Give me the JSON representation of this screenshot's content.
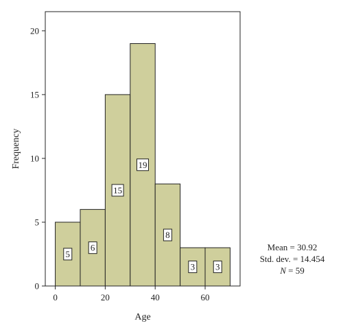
{
  "chart_data": {
    "type": "bar",
    "subtype": "histogram",
    "bins": [
      [
        0,
        10
      ],
      [
        10,
        20
      ],
      [
        20,
        30
      ],
      [
        30,
        40
      ],
      [
        40,
        50
      ],
      [
        50,
        60
      ],
      [
        60,
        70
      ]
    ],
    "values": [
      5,
      6,
      15,
      19,
      8,
      3,
      3
    ],
    "data_labels": [
      "5",
      "6",
      "15",
      "19",
      "8",
      "3",
      "3"
    ],
    "xlabel": "Age",
    "ylabel": "Frequency",
    "xlim": [
      -4,
      74
    ],
    "ylim": [
      0,
      21.5
    ],
    "xticks": [
      0,
      20,
      40,
      60
    ],
    "yticks": [
      0,
      5,
      10,
      15,
      20
    ],
    "xtick_labels": [
      "0",
      "20",
      "40",
      "60"
    ],
    "ytick_labels": [
      "0",
      "5",
      "10",
      "15",
      "20"
    ],
    "bar_color": "#cfcf9c",
    "bar_edge_color": "#222222",
    "grid": false,
    "stats": {
      "mean": "Mean = 30.92",
      "sd": "Std. dev. = 14.454",
      "n_symbol": "N",
      "n_value": " = 59"
    }
  }
}
